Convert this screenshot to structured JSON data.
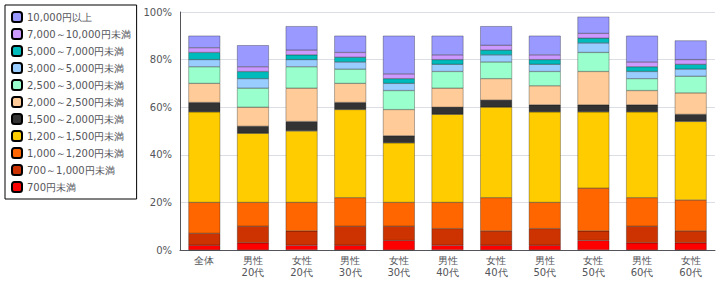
{
  "chart_data": {
    "type": "bar",
    "stacked": true,
    "categories": [
      "全体",
      "男性\n20代",
      "女性\n20代",
      "男性\n30代",
      "女性\n30代",
      "男性\n40代",
      "女性\n40代",
      "男性\n50代",
      "女性\n50代",
      "男性\n60代",
      "女性\n60代"
    ],
    "series": [
      {
        "name": "700円未満",
        "color": "#FF0000",
        "values": [
          2,
          3,
          2,
          2,
          4,
          2,
          2,
          2,
          4,
          3,
          3
        ]
      },
      {
        "name": "700～1,000円未満",
        "color": "#CC3300",
        "values": [
          5,
          7,
          6,
          8,
          6,
          7,
          6,
          7,
          4,
          7,
          5
        ]
      },
      {
        "name": "1,000～1,200円未満",
        "color": "#FF6600",
        "values": [
          13,
          10,
          12,
          12,
          10,
          11,
          14,
          11,
          18,
          12,
          13
        ]
      },
      {
        "name": "1,200～1,500円未満",
        "color": "#FFCC00",
        "values": [
          38,
          29,
          30,
          37,
          25,
          37,
          38,
          38,
          32,
          36,
          33
        ]
      },
      {
        "name": "1,500～2,000円未満",
        "color": "#333333",
        "values": [
          4,
          3,
          4,
          3,
          3,
          3,
          3,
          3,
          3,
          3,
          3
        ]
      },
      {
        "name": "2,000～2,500円未満",
        "color": "#FFCC99",
        "values": [
          8,
          8,
          14,
          8,
          11,
          8,
          9,
          8,
          14,
          6,
          9
        ]
      },
      {
        "name": "2,500～3,000円未満",
        "color": "#99FFCC",
        "values": [
          7,
          8,
          9,
          6,
          8,
          7,
          7,
          6,
          8,
          5,
          7
        ]
      },
      {
        "name": "3,000～5,000円未満",
        "color": "#99CCFF",
        "values": [
          3,
          4,
          3,
          3,
          3,
          3,
          3,
          3,
          4,
          3,
          3
        ]
      },
      {
        "name": "5,000～7,000円未満",
        "color": "#00BBBB",
        "values": [
          3,
          3,
          2,
          2,
          2,
          2,
          2,
          2,
          2,
          2,
          2
        ]
      },
      {
        "name": "7,000～10,000円未満",
        "color": "#CC99FF",
        "values": [
          2,
          2,
          2,
          2,
          2,
          2,
          2,
          2,
          2,
          2,
          2
        ]
      },
      {
        "name": "10,000円以上",
        "color": "#9999FF",
        "values": [
          5,
          9,
          10,
          7,
          16,
          8,
          8,
          8,
          7,
          11,
          8
        ]
      }
    ],
    "ylim": [
      0,
      100
    ],
    "yticks": [
      {
        "value": 0,
        "label": "0%"
      },
      {
        "value": 20,
        "label": "20%"
      },
      {
        "value": 40,
        "label": "40%"
      },
      {
        "value": 60,
        "label": "60%"
      },
      {
        "value": 80,
        "label": "80%"
      },
      {
        "value": 100,
        "label": "100%"
      }
    ],
    "grid": true,
    "legend": "upper left"
  }
}
